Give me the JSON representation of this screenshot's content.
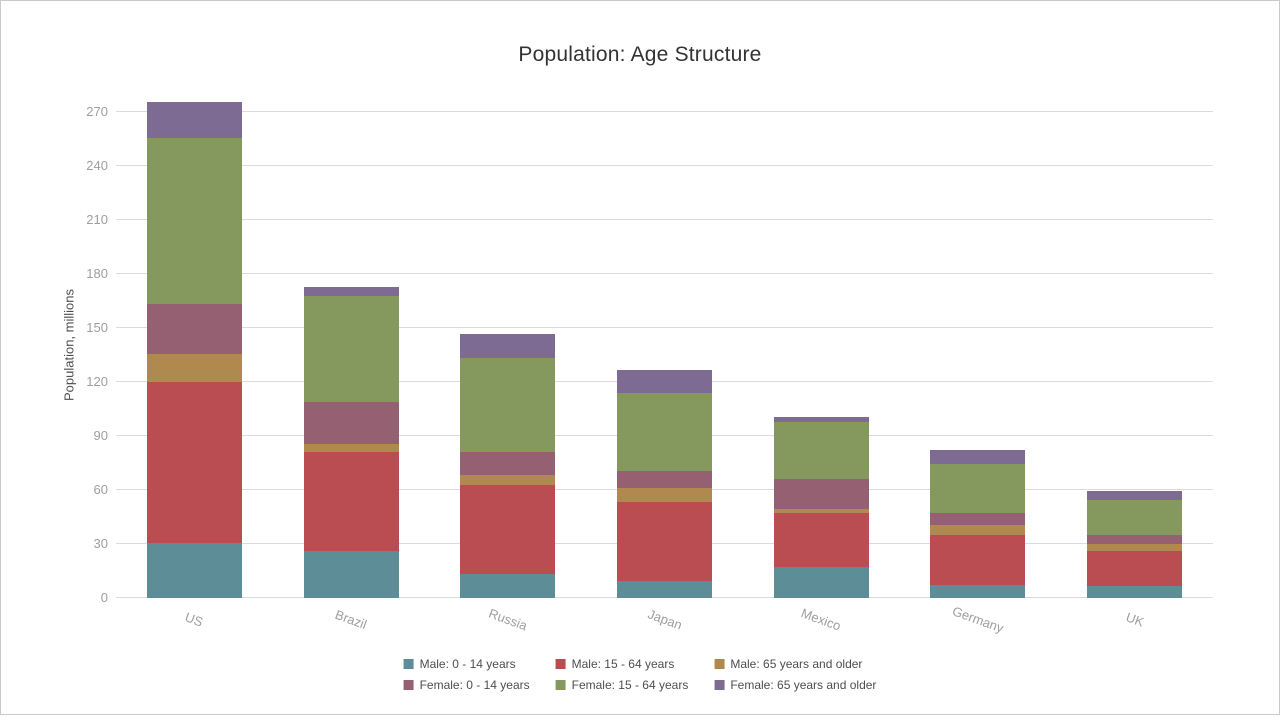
{
  "window": {
    "background": "#ffffff",
    "border_color": "#c9c9c9"
  },
  "chart": {
    "title": "Population: Age Structure",
    "y_axis_title": "Population, millions"
  },
  "chart_data": {
    "type": "bar",
    "stacked": true,
    "title": "Population: Age Structure",
    "xlabel": "",
    "ylabel": "Population, millions",
    "categories": [
      "US",
      "Brazil",
      "Russia",
      "Japan",
      "Mexico",
      "Germany",
      "UK"
    ],
    "series": [
      {
        "name": "Male: 0 - 14 years",
        "color": "#5d8e97",
        "values": [
          30.5,
          26,
          13.5,
          9.5,
          17.5,
          7,
          6.5
        ]
      },
      {
        "name": "Male: 15 - 64 years",
        "color": "#b94d52",
        "values": [
          89.5,
          55,
          49.5,
          44,
          30,
          28,
          19.5
        ]
      },
      {
        "name": "Male: 65 years and older",
        "color": "#b0894e",
        "values": [
          15.5,
          4.5,
          5.5,
          7.5,
          2,
          5.5,
          4
        ]
      },
      {
        "name": "Female: 0 - 14 years",
        "color": "#966073",
        "values": [
          28,
          23.5,
          12.5,
          9.5,
          16.5,
          6.5,
          5
        ]
      },
      {
        "name": "Female: 15 - 64 years",
        "color": "#85995e",
        "values": [
          92,
          59,
          52.5,
          43.5,
          32,
          27.5,
          19.5
        ]
      },
      {
        "name": "Female: 65 years and older",
        "color": "#7d6b93",
        "values": [
          20,
          5,
          13,
          12.5,
          2.5,
          8,
          5
        ]
      }
    ],
    "totals": [
      275.5,
      173,
      146.5,
      126.5,
      100.5,
      82.5,
      59.5
    ],
    "y_ticks": [
      0,
      30,
      60,
      90,
      120,
      150,
      180,
      210,
      240,
      270
    ],
    "ylim": [
      0,
      270
    ],
    "grid": "horizontal",
    "legend_position": "bottom",
    "x_label_rotation_deg": 20,
    "tick_label_color": "#9e9e9e",
    "gridline_color": "#dbdbdb"
  }
}
